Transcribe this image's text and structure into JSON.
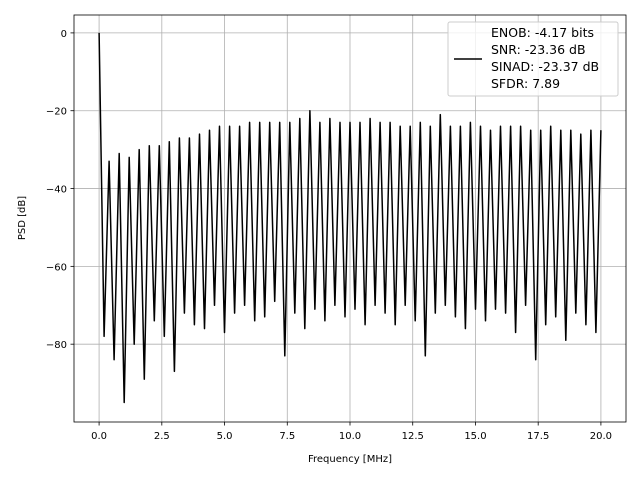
{
  "chart_data": {
    "type": "line",
    "title": "",
    "xlabel": "Frequency [MHz]",
    "ylabel": "PSD [dB]",
    "xlim": [
      -1,
      21
    ],
    "ylim": [
      -100,
      4.6
    ],
    "xticks": [
      "0.0",
      "2.5",
      "5.0",
      "7.5",
      "10.0",
      "12.5",
      "15.0",
      "17.5",
      "20.0"
    ],
    "xtick_values": [
      0,
      2.5,
      5,
      7.5,
      10,
      12.5,
      15,
      17.5,
      20
    ],
    "yticks": [
      "0",
      "−20",
      "−40",
      "−60",
      "−80"
    ],
    "ytick_values": [
      0,
      -20,
      -40,
      -60,
      -80
    ],
    "grid": true,
    "legend_placement": "upper right",
    "line_color": "#000000",
    "series": [
      {
        "x_start": 0,
        "x_step": 0.2,
        "y": [
          0,
          -78,
          -33,
          -84,
          -31,
          -95,
          -32,
          -80,
          -30,
          -89,
          -29,
          -74,
          -29,
          -78,
          -28,
          -87,
          -27,
          -72,
          -27,
          -75,
          -26,
          -76,
          -25,
          -70,
          -24,
          -77,
          -24,
          -72,
          -24,
          -70,
          -23,
          -74,
          -23,
          -73,
          -23,
          -69,
          -23,
          -83,
          -23,
          -72,
          -22,
          -76,
          -20,
          -71,
          -23,
          -74,
          -22,
          -70,
          -23,
          -73,
          -23,
          -71,
          -23,
          -75,
          -22,
          -70,
          -23,
          -72,
          -23,
          -75,
          -24,
          -70,
          -24,
          -74,
          -23,
          -83,
          -24,
          -72,
          -21,
          -70,
          -24,
          -73,
          -24,
          -76,
          -23,
          -71,
          -24,
          -74,
          -25,
          -71,
          -24,
          -72,
          -24,
          -77,
          -24,
          -70,
          -25,
          -84,
          -25,
          -75,
          -24,
          -73,
          -25,
          -79,
          -25,
          -72,
          -26,
          -75,
          -25,
          -77,
          -25
        ]
      }
    ],
    "legend": [
      "ENOB: -4.17 bits",
      "SNR: -23.36 dB",
      "SINAD: -23.37 dB",
      "SFDR: 7.89"
    ]
  }
}
